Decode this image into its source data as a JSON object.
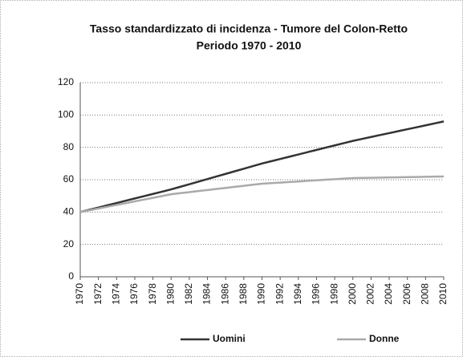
{
  "chart_data": {
    "type": "line",
    "title": "Tasso standardizzato di incidenza - Tumore del Colon-Retto",
    "subtitle": "Periodo 1970 - 2010",
    "x": [
      1970,
      1971,
      1972,
      1973,
      1974,
      1975,
      1976,
      1977,
      1978,
      1979,
      1980,
      1981,
      1982,
      1983,
      1984,
      1985,
      1986,
      1987,
      1988,
      1989,
      1990,
      1991,
      1992,
      1993,
      1994,
      1995,
      1996,
      1997,
      1998,
      1999,
      2000,
      2001,
      2002,
      2003,
      2004,
      2005,
      2006,
      2007,
      2008,
      2009,
      2010
    ],
    "series": [
      {
        "name": "Uomini",
        "color": "#333333",
        "values": [
          40,
          41.4,
          42.8,
          44.2,
          45.6,
          47,
          48.4,
          49.8,
          51.2,
          52.6,
          54,
          55.6,
          57.2,
          58.8,
          60.4,
          62,
          63.6,
          65.2,
          66.8,
          68.4,
          70,
          71.4,
          72.8,
          74.2,
          75.6,
          77,
          78.4,
          79.8,
          81.2,
          82.6,
          84,
          85.2,
          86.4,
          87.6,
          88.8,
          90,
          91.2,
          92.4,
          93.6,
          94.8,
          96
        ]
      },
      {
        "name": "Donne",
        "color": "#aaaaaa",
        "values": [
          40,
          41.1,
          42.2,
          43.3,
          44.4,
          45.5,
          46.6,
          47.7,
          48.8,
          49.9,
          51,
          51.7,
          52.3,
          53,
          53.6,
          54.3,
          54.9,
          55.6,
          56.2,
          56.9,
          57.5,
          57.9,
          58.2,
          58.6,
          58.9,
          59.3,
          59.6,
          60,
          60.3,
          60.7,
          61,
          61.1,
          61.2,
          61.3,
          61.4,
          61.5,
          61.6,
          61.7,
          61.8,
          61.9,
          62
        ]
      }
    ],
    "xlim": [
      1970,
      2010
    ],
    "xticks": [
      1970,
      1972,
      1974,
      1976,
      1978,
      1980,
      1982,
      1984,
      1986,
      1988,
      1990,
      1992,
      1994,
      1996,
      1998,
      2000,
      2002,
      2004,
      2006,
      2008,
      2010
    ],
    "ylim": [
      0,
      120
    ],
    "yticks": [
      0,
      20,
      40,
      60,
      80,
      100,
      120
    ],
    "grid": true
  }
}
